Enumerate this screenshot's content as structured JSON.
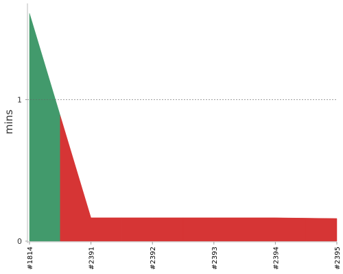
{
  "chart_data": {
    "type": "area",
    "y_label": "mins",
    "categories": [
      "#1814",
      "#2391",
      "#2392",
      "#2393",
      "#2394",
      "#2395"
    ],
    "values": [
      1.61,
      0.165,
      0.165,
      0.165,
      0.165,
      0.16
    ],
    "colors": [
      "#429a6c",
      "#d63535",
      "#d63535",
      "#d63535",
      "#d63535",
      "#d63535"
    ],
    "ylim": [
      0,
      1.68
    ],
    "yticks": [
      0,
      1
    ],
    "grid": true
  }
}
